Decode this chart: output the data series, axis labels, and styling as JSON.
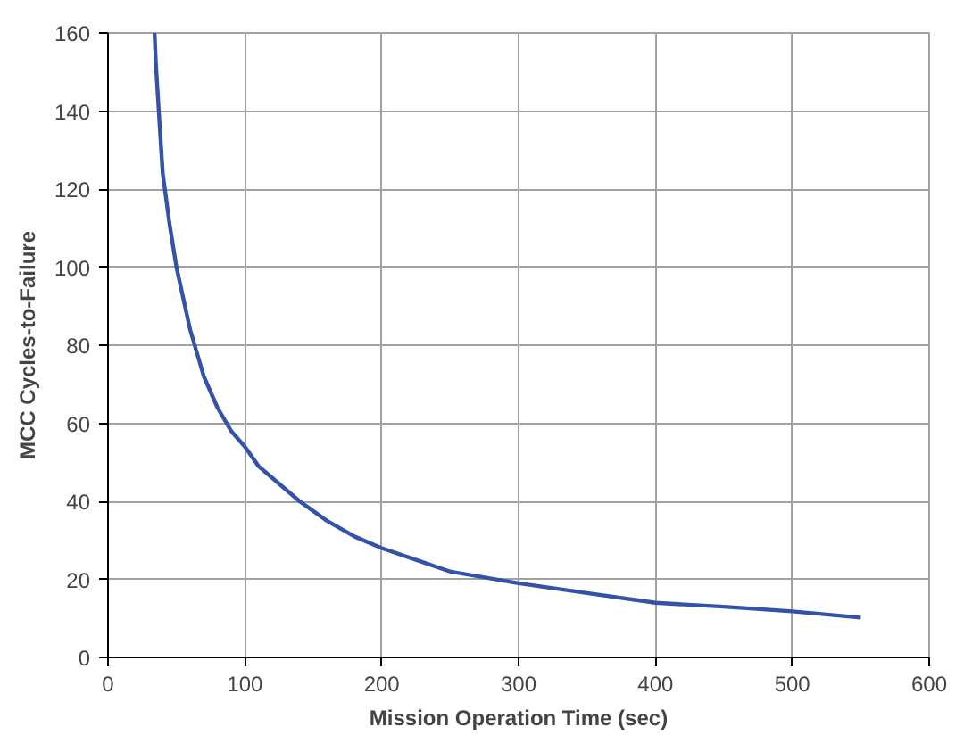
{
  "chart_data": {
    "type": "line",
    "xlabel": "Mission Operation Time (sec)",
    "ylabel": "MCC Cycles-to-Failure",
    "x": [
      34,
      35,
      38,
      40,
      45,
      50,
      55,
      60,
      70,
      80,
      90,
      100,
      110,
      120,
      140,
      160,
      180,
      200,
      225,
      250,
      300,
      350,
      400,
      450,
      500,
      550
    ],
    "values": [
      160,
      152,
      135,
      124,
      111,
      100,
      92,
      84,
      72,
      64,
      58,
      54,
      49,
      46,
      40,
      35,
      31,
      28,
      25,
      22,
      19,
      16.5,
      14,
      13,
      11.8,
      10.2
    ],
    "color": "#3352a8",
    "xlim": [
      0,
      600
    ],
    "ylim": [
      0,
      160
    ],
    "xticks": [
      0,
      100,
      200,
      300,
      400,
      500,
      600
    ],
    "yticks": [
      0,
      20,
      40,
      60,
      80,
      100,
      120,
      140,
      160
    ],
    "grid": true,
    "marker": "none",
    "line_style": "solid"
  }
}
